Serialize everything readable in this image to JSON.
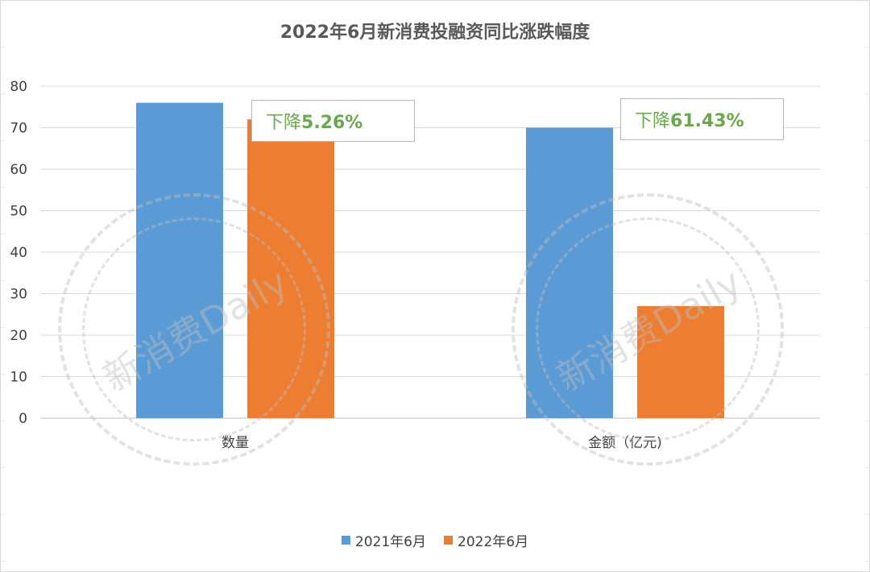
{
  "chart_data": {
    "type": "bar",
    "title": "2022年6月新消费投融资同比涨跌幅度",
    "categories": [
      "数量",
      "金额（亿元)"
    ],
    "series": [
      {
        "name": "2021年6月",
        "color": "#5b9bd5",
        "values": [
          76,
          70
        ]
      },
      {
        "name": "2022年6月",
        "color": "#ed7d31",
        "values": [
          72,
          27
        ]
      }
    ],
    "ylim": [
      0,
      80
    ],
    "yticks": [
      0,
      10,
      20,
      30,
      40,
      50,
      60,
      70,
      80
    ],
    "grid": true,
    "legend": "bottom",
    "annotations": [
      {
        "prefix": "下降",
        "value": "5.26%",
        "category": "数量"
      },
      {
        "prefix": "下降",
        "value": "61.43%",
        "category": "金额（亿元)"
      }
    ],
    "annotation_color": "#6aa84f"
  },
  "watermark": "新消费Daily"
}
